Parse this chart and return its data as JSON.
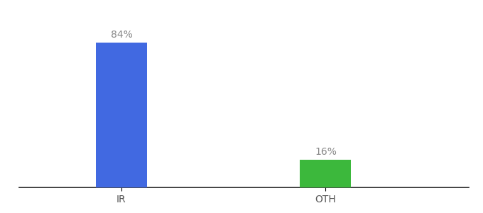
{
  "categories": [
    "IR",
    "OTH"
  ],
  "values": [
    84,
    16
  ],
  "bar_colors": [
    "#4169e1",
    "#3cb83c"
  ],
  "labels": [
    "84%",
    "16%"
  ],
  "background_color": "#ffffff",
  "bar_width": 0.25,
  "ylim": [
    0,
    100
  ],
  "x_positions": [
    1,
    2
  ],
  "xlim": [
    0.5,
    2.7
  ],
  "label_fontsize": 10,
  "tick_fontsize": 10,
  "label_color": "#888888"
}
